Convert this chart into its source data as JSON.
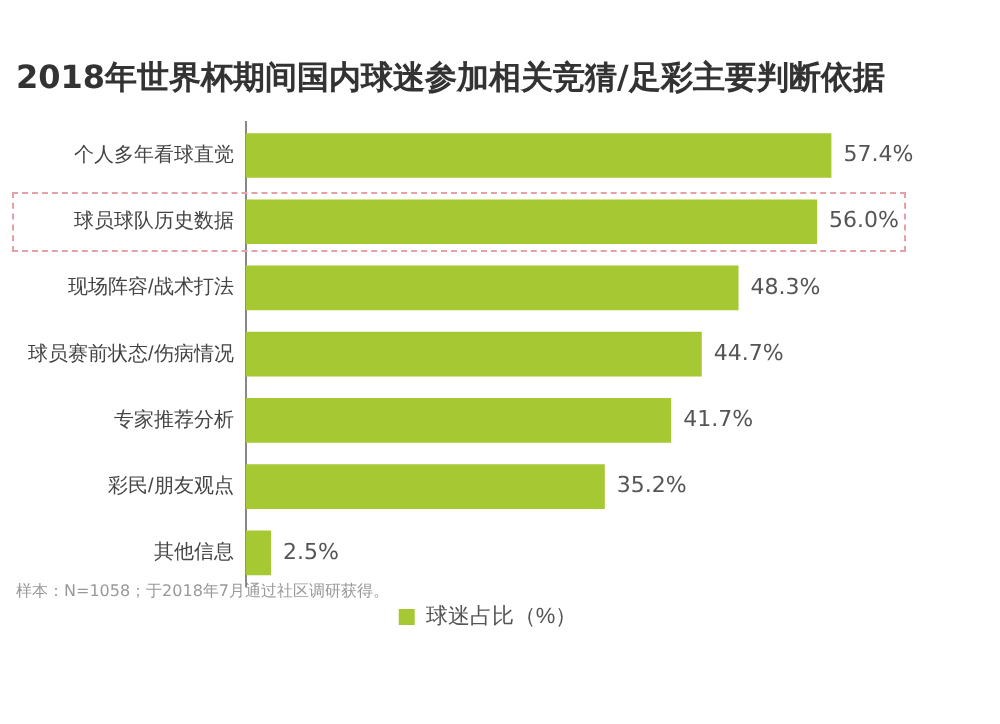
{
  "chart_data": {
    "type": "bar",
    "orientation": "horizontal",
    "title": "2018年世界杯期间国内球迷参加相关竞猜/足彩主要判断依据",
    "categories": [
      "个人多年看球直觉",
      "球员球队历史数据",
      "现场阵容/战术打法",
      "球员赛前状态/伤病情况",
      "专家推荐分析",
      "彩民/朋友观点",
      "其他信息"
    ],
    "series": [
      {
        "name": "球迷占比（%）",
        "color": "#a6c833",
        "values": [
          57.4,
          56.0,
          48.3,
          44.7,
          41.7,
          35.2,
          2.5
        ],
        "value_labels": [
          "57.4%",
          "56.0%",
          "48.3%",
          "44.7%",
          "41.7%",
          "35.2%",
          "2.5%"
        ]
      }
    ],
    "legend": "bottom",
    "grid": false,
    "tick_labels": "y",
    "annotations": [
      "样本：N=1058；于2018年7月通过社区调研获得。"
    ]
  }
}
